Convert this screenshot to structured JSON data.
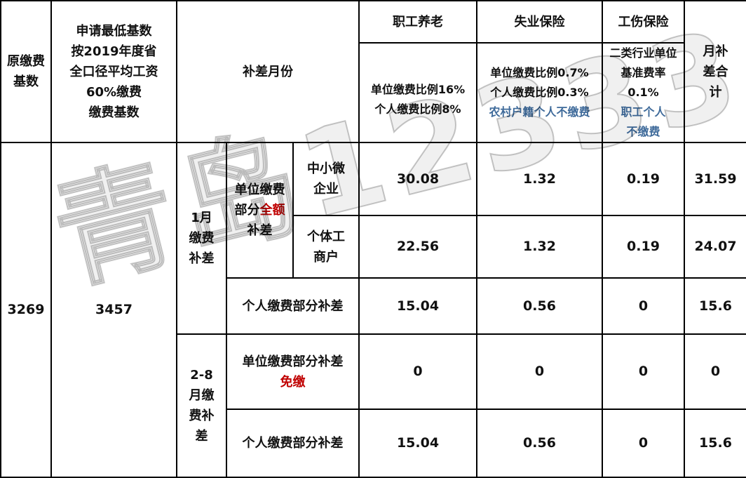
{
  "header": {
    "original_base": "原缴费基数",
    "min_base_lines": [
      "申请最低基数",
      "按2019年度省",
      "全口径平均工资",
      "60%缴费",
      "缴费基数"
    ],
    "month": "补差月份",
    "pension": "职工养老",
    "unemployment": "失业保险",
    "injury": "工伤保险",
    "monthly_total": "月补差合计",
    "pension_rate_lines": [
      "单位缴费比例16%",
      "个人缴费比例8%"
    ],
    "unemployment_rate_lines": [
      "单位缴费比例0.7%",
      "个人缴费比例0.3%"
    ],
    "unemployment_note": "农村户籍个人不缴费",
    "injury_rate_lines": [
      "二类行业单位基准费率",
      "0.1%"
    ],
    "injury_note": "职工个人不缴费"
  },
  "body": {
    "original_base": "3269",
    "min_base": "3457",
    "jan": {
      "label": "1月缴费补差",
      "unit_label_prefix": "单位缴费部分",
      "unit_label_highlight": "全额",
      "unit_label_suffix": "补差",
      "rows": [
        {
          "type": "中小微企业",
          "pension": "30.08",
          "unemployment": "1.32",
          "injury": "0.19",
          "total": "31.59"
        },
        {
          "type": "个体工商户",
          "pension": "22.56",
          "unemployment": "1.32",
          "injury": "0.19",
          "total": "24.07"
        }
      ],
      "personal": {
        "label": "个人缴费部分补差",
        "pension": "15.04",
        "unemployment": "0.56",
        "injury": "0",
        "total": "15.6"
      }
    },
    "feb_aug": {
      "label": "2-8月缴费补差",
      "unit": {
        "label": "单位缴费部分补差",
        "note": "免缴",
        "pension": "0",
        "unemployment": "0",
        "injury": "0",
        "total": "0"
      },
      "personal": {
        "label": "个人缴费部分补差",
        "pension": "15.04",
        "unemployment": "0.56",
        "injury": "0",
        "total": "15.6"
      }
    }
  },
  "watermark": "青岛12333",
  "colors": {
    "note_blue": "#3e6a9a",
    "highlight_red": "#c00000"
  }
}
